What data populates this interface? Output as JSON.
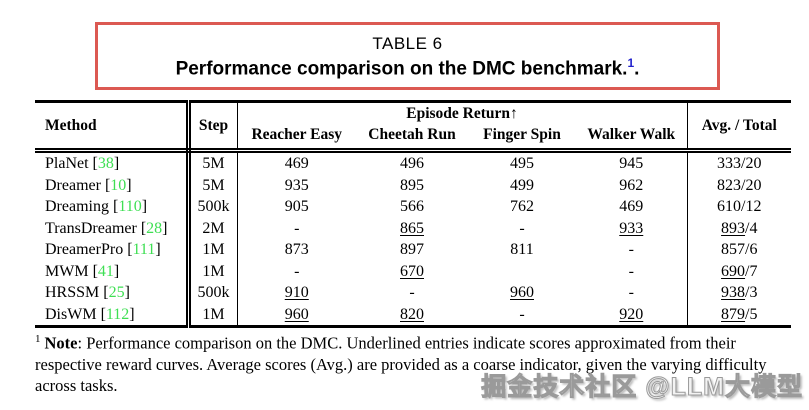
{
  "caption": {
    "label": "TABLE 6",
    "title": "Performance comparison on the DMC benchmark.",
    "footnote_marker": "1",
    "title_suffix": "."
  },
  "table": {
    "headers": {
      "method": "Method",
      "step": "Step",
      "group": "Episode Return↑",
      "tasks": [
        "Reacher Easy",
        "Cheetah Run",
        "Finger Spin",
        "Walker Walk"
      ],
      "avg": "Avg. / Total"
    },
    "citation_brackets": [
      "[",
      "]"
    ],
    "rows": [
      {
        "method": "PlaNet",
        "cite": "38",
        "step": "5M",
        "scores": [
          {
            "v": "469"
          },
          {
            "v": "496"
          },
          {
            "v": "495"
          },
          {
            "v": "945"
          }
        ],
        "avg": {
          "v": "333",
          "rest": "/20",
          "u": false
        }
      },
      {
        "method": "Dreamer",
        "cite": "10",
        "step": "5M",
        "scores": [
          {
            "v": "935"
          },
          {
            "v": "895"
          },
          {
            "v": "499"
          },
          {
            "v": "962"
          }
        ],
        "avg": {
          "v": "823",
          "rest": "/20",
          "u": false
        }
      },
      {
        "method": "Dreaming",
        "cite": "110",
        "step": "500k",
        "scores": [
          {
            "v": "905"
          },
          {
            "v": "566"
          },
          {
            "v": "762"
          },
          {
            "v": "469"
          }
        ],
        "avg": {
          "v": "610",
          "rest": "/12",
          "u": false
        }
      },
      {
        "method": "TransDreamer",
        "cite": "28",
        "step": "2M",
        "scores": [
          {
            "v": "-"
          },
          {
            "v": "865",
            "u": true
          },
          {
            "v": "-"
          },
          {
            "v": "933",
            "u": true
          }
        ],
        "avg": {
          "v": "893",
          "rest": "/4",
          "u": true
        }
      },
      {
        "method": "DreamerPro",
        "cite": "111",
        "step": "1M",
        "scores": [
          {
            "v": "873"
          },
          {
            "v": "897"
          },
          {
            "v": "811"
          },
          {
            "v": "-"
          }
        ],
        "avg": {
          "v": "857",
          "rest": "/6",
          "u": false
        }
      },
      {
        "method": "MWM",
        "cite": "41",
        "step": "1M",
        "scores": [
          {
            "v": "-"
          },
          {
            "v": "670",
            "u": true
          },
          {
            "v": ""
          },
          {
            "v": "-"
          }
        ],
        "avg": {
          "v": "690",
          "rest": "/7",
          "u": true
        }
      },
      {
        "method": "HRSSM",
        "cite": "25",
        "step": "500k",
        "scores": [
          {
            "v": "910",
            "u": true
          },
          {
            "v": "-"
          },
          {
            "v": "960",
            "u": true
          },
          {
            "v": "-"
          }
        ],
        "avg": {
          "v": "938",
          "rest": "/3",
          "u": true
        }
      },
      {
        "method": "DisWM",
        "cite": "112",
        "step": "1M",
        "scores": [
          {
            "v": "960",
            "u": true
          },
          {
            "v": "820",
            "u": true
          },
          {
            "v": "-"
          },
          {
            "v": "920",
            "u": true
          }
        ],
        "avg": {
          "v": "879",
          "rest": "/5",
          "u": true
        }
      }
    ]
  },
  "footnote": {
    "marker": "1",
    "label": "Note",
    "text": ": Performance comparison on the DMC. Underlined entries indicate scores approximated from their respective reward curves. Average scores (Avg.) are provided as a coarse indicator, given the varying difficulty across tasks."
  },
  "watermark": "掘金技术社区 @LLM大模型",
  "colors": {
    "caption_box_border": "#dc5952",
    "citation_green": "#3edf53",
    "superscript_blue": "#2222cd",
    "watermark_gray": "#9a9a9a",
    "rule_black": "#000000"
  }
}
